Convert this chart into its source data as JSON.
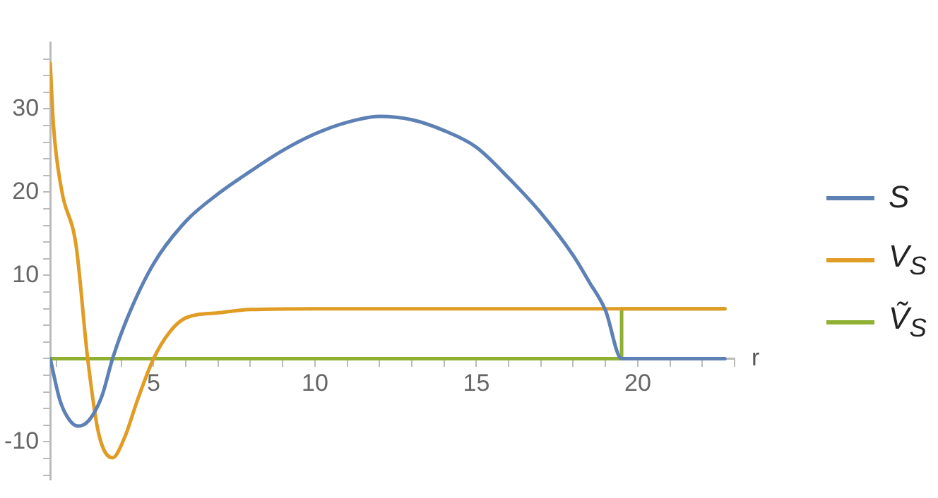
{
  "chart_data": {
    "type": "line",
    "xlabel": "r",
    "xlim": [
      1.8,
      23
    ],
    "ylim": [
      -14.5,
      38
    ],
    "xticks": [
      {
        "value": 2,
        "label": null
      },
      {
        "value": 3,
        "label": null
      },
      {
        "value": 4,
        "label": null
      },
      5,
      {
        "value": 6,
        "label": null
      },
      {
        "value": 7,
        "label": null
      },
      {
        "value": 8,
        "label": null
      },
      {
        "value": 9,
        "label": null
      },
      10,
      {
        "value": 11,
        "label": null
      },
      {
        "value": 12,
        "label": null
      },
      {
        "value": 13,
        "label": null
      },
      {
        "value": 14,
        "label": null
      },
      15,
      {
        "value": 16,
        "label": null
      },
      {
        "value": 17,
        "label": null
      },
      {
        "value": 18,
        "label": null
      },
      {
        "value": 19,
        "label": null
      },
      20,
      {
        "value": 21,
        "label": null
      },
      {
        "value": 22,
        "label": null
      },
      {
        "value": 23,
        "label": null
      }
    ],
    "yticks": [
      {
        "value": -14,
        "label": null
      },
      {
        "value": -12,
        "label": null
      },
      -10,
      {
        "value": -8,
        "label": null
      },
      {
        "value": -6,
        "label": null
      },
      {
        "value": -4,
        "label": null
      },
      {
        "value": -2,
        "label": null
      },
      {
        "value": 0,
        "label": null
      },
      {
        "value": 2,
        "label": null
      },
      {
        "value": 4,
        "label": null
      },
      {
        "value": 6,
        "label": null
      },
      {
        "value": 8,
        "label": null
      },
      10,
      {
        "value": 12,
        "label": null
      },
      {
        "value": 14,
        "label": null
      },
      {
        "value": 16,
        "label": null
      },
      {
        "value": 18,
        "label": null
      },
      20,
      {
        "value": 22,
        "label": null
      },
      {
        "value": 24,
        "label": null
      },
      {
        "value": 26,
        "label": null
      },
      {
        "value": 28,
        "label": null
      },
      30,
      {
        "value": 32,
        "label": null
      },
      {
        "value": 34,
        "label": null
      },
      {
        "value": 36,
        "label": null
      }
    ],
    "grid": false,
    "legend": "right",
    "marker": "none",
    "line_style": "solid",
    "series": [
      {
        "name": "S",
        "color": "#5e81b5",
        "x": [
          1.8,
          2.1,
          2.4,
          2.66,
          3.0,
          3.4,
          3.73,
          4.2,
          5,
          6,
          7,
          8,
          9,
          10,
          11,
          12,
          13,
          14,
          15,
          16,
          17,
          18,
          18.5,
          19,
          19.5,
          20,
          22.7
        ],
        "values": [
          0,
          -5,
          -7.4,
          -8.1,
          -7.4,
          -4.5,
          0,
          5,
          11.4,
          16.5,
          19.8,
          22.5,
          25,
          27,
          28.4,
          29.1,
          28.7,
          27.4,
          25.4,
          21.7,
          17.5,
          12.4,
          9.2,
          5.8,
          0,
          0,
          0
        ]
      },
      {
        "name": "V$_{S}$",
        "color": "#e19c24",
        "x": [
          1.8,
          1.9,
          2.15,
          2.6,
          2.96,
          3.3,
          3.73,
          4.1,
          4.5,
          5,
          5.5,
          6,
          7,
          8,
          10,
          15,
          22.7
        ],
        "values": [
          35.5,
          28,
          20.3,
          13.6,
          0,
          -9,
          -11.9,
          -9.5,
          -5,
          0,
          3.2,
          4.9,
          5.5,
          5.9,
          6,
          6,
          6
        ]
      },
      {
        "name": "Ṽ$_{S}$",
        "color": "#8fb032",
        "x": [
          1.8,
          19.5,
          19.5,
          22.7
        ],
        "values": [
          0,
          0,
          6,
          6
        ]
      }
    ]
  }
}
